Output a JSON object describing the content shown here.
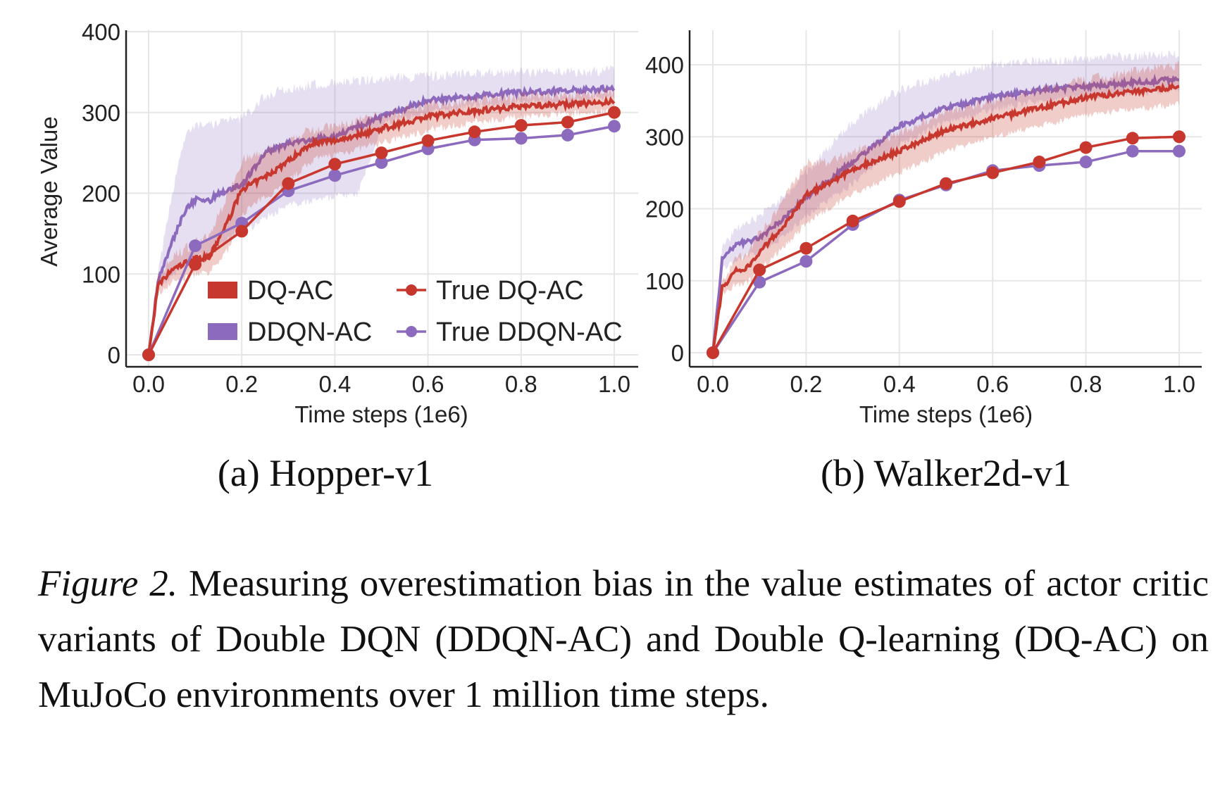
{
  "colors": {
    "dq": "#c8372d",
    "ddqn": "#8c6bbf",
    "grid": "#e6e6e6",
    "axis": "#222222"
  },
  "chart_data": [
    {
      "type": "line",
      "subcaption": "(a) Hopper-v1",
      "xlabel": "Time steps (1e6)",
      "ylabel": "Average Value",
      "xlim": [
        0,
        1.0
      ],
      "ylim": [
        -10,
        410
      ],
      "xticks": [
        "0.0",
        "0.2",
        "0.4",
        "0.6",
        "0.8",
        "1.0"
      ],
      "yticks": [
        "0",
        "100",
        "200",
        "300",
        "400"
      ],
      "grid": true,
      "legend_placement": "lower-right",
      "legend": [
        "DQ-AC",
        "DDQN-AC",
        "True DQ-AC",
        "True DDQN-AC"
      ],
      "series": [
        {
          "name": "DQ-AC",
          "kind": "mean_band",
          "color": "dq",
          "x": [
            0,
            0.02,
            0.05,
            0.1,
            0.13,
            0.17,
            0.2,
            0.25,
            0.3,
            0.35,
            0.4,
            0.5,
            0.6,
            0.7,
            0.8,
            0.9,
            1.0
          ],
          "y": [
            0,
            85,
            105,
            120,
            120,
            165,
            205,
            220,
            240,
            262,
            265,
            280,
            295,
            302,
            308,
            310,
            313
          ],
          "lower": [
            0,
            75,
            90,
            100,
            100,
            130,
            175,
            195,
            215,
            240,
            248,
            262,
            278,
            288,
            295,
            298,
            302
          ],
          "upper": [
            0,
            95,
            120,
            140,
            145,
            200,
            240,
            250,
            262,
            280,
            282,
            296,
            310,
            316,
            320,
            322,
            325
          ]
        },
        {
          "name": "DDQN-AC",
          "kind": "mean_band",
          "color": "ddqn",
          "x": [
            0,
            0.02,
            0.05,
            0.08,
            0.1,
            0.13,
            0.15,
            0.2,
            0.25,
            0.3,
            0.4,
            0.45,
            0.5,
            0.6,
            0.7,
            0.8,
            0.9,
            1.0
          ],
          "y": [
            0,
            90,
            140,
            180,
            192,
            190,
            200,
            210,
            250,
            262,
            270,
            283,
            295,
            315,
            320,
            325,
            327,
            330
          ],
          "lower": [
            0,
            80,
            100,
            110,
            120,
            125,
            135,
            150,
            170,
            185,
            195,
            200,
            285,
            300,
            308,
            312,
            314,
            318
          ],
          "upper": [
            0,
            100,
            200,
            270,
            285,
            285,
            288,
            292,
            320,
            330,
            338,
            340,
            342,
            345,
            348,
            350,
            350,
            352
          ]
        },
        {
          "name": "True DQ-AC",
          "kind": "markers",
          "color": "dq",
          "x": [
            0,
            0.1,
            0.2,
            0.3,
            0.4,
            0.5,
            0.6,
            0.7,
            0.8,
            0.9,
            1.0
          ],
          "y": [
            0,
            112,
            153,
            212,
            236,
            250,
            265,
            276,
            284,
            288,
            300
          ]
        },
        {
          "name": "True DDQN-AC",
          "kind": "markers",
          "color": "ddqn",
          "x": [
            0,
            0.1,
            0.2,
            0.3,
            0.4,
            0.5,
            0.6,
            0.7,
            0.8,
            0.9,
            1.0
          ],
          "y": [
            0,
            135,
            163,
            203,
            222,
            238,
            255,
            266,
            268,
            272,
            283
          ]
        }
      ]
    },
    {
      "type": "line",
      "subcaption": "(b) Walker2d-v1",
      "xlabel": "Time steps (1e6)",
      "ylabel": "",
      "xlim": [
        0,
        1.0
      ],
      "ylim": [
        -10,
        445
      ],
      "xticks": [
        "0.0",
        "0.2",
        "0.4",
        "0.6",
        "0.8",
        "1.0"
      ],
      "yticks": [
        "0",
        "100",
        "200",
        "300",
        "400"
      ],
      "grid": true,
      "series": [
        {
          "name": "DQ-AC",
          "kind": "mean_band",
          "color": "dq",
          "x": [
            0,
            0.02,
            0.05,
            0.07,
            0.1,
            0.15,
            0.2,
            0.25,
            0.3,
            0.4,
            0.5,
            0.6,
            0.7,
            0.8,
            0.9,
            1.0
          ],
          "y": [
            0,
            90,
            115,
            115,
            140,
            175,
            220,
            235,
            255,
            280,
            310,
            325,
            340,
            355,
            362,
            370
          ],
          "lower": [
            0,
            80,
            95,
            95,
            115,
            145,
            180,
            200,
            220,
            250,
            280,
            300,
            315,
            330,
            338,
            345
          ],
          "upper": [
            0,
            100,
            130,
            135,
            165,
            210,
            265,
            265,
            280,
            305,
            335,
            350,
            365,
            380,
            390,
            400
          ]
        },
        {
          "name": "DDQN-AC",
          "kind": "mean_band",
          "color": "ddqn",
          "x": [
            0,
            0.02,
            0.05,
            0.1,
            0.15,
            0.2,
            0.3,
            0.4,
            0.5,
            0.6,
            0.7,
            0.8,
            0.9,
            1.0
          ],
          "y": [
            0,
            130,
            150,
            160,
            185,
            215,
            265,
            315,
            340,
            355,
            365,
            370,
            375,
            380
          ],
          "lower": [
            0,
            115,
            130,
            140,
            160,
            190,
            235,
            290,
            320,
            338,
            350,
            355,
            360,
            365
          ],
          "upper": [
            0,
            145,
            170,
            190,
            215,
            250,
            320,
            365,
            385,
            400,
            405,
            408,
            412,
            415
          ]
        },
        {
          "name": "True DQ-AC",
          "kind": "markers",
          "color": "dq",
          "x": [
            0,
            0.1,
            0.2,
            0.3,
            0.4,
            0.5,
            0.6,
            0.7,
            0.8,
            0.9,
            1.0
          ],
          "y": [
            0,
            115,
            145,
            183,
            210,
            235,
            250,
            265,
            285,
            298,
            300
          ]
        },
        {
          "name": "True DDQN-AC",
          "kind": "markers",
          "color": "ddqn",
          "x": [
            0,
            0.1,
            0.2,
            0.3,
            0.4,
            0.5,
            0.6,
            0.7,
            0.8,
            0.9,
            1.0
          ],
          "y": [
            0,
            98,
            127,
            178,
            212,
            233,
            253,
            260,
            265,
            280,
            280
          ]
        }
      ]
    }
  ],
  "caption": {
    "label": "Figure 2.",
    "text": " Measuring overestimation bias in the value estimates of actor critic variants of Double DQN (DDQN-AC) and Double Q-learning (DQ-AC) on MuJoCo environments over 1 million time steps."
  }
}
